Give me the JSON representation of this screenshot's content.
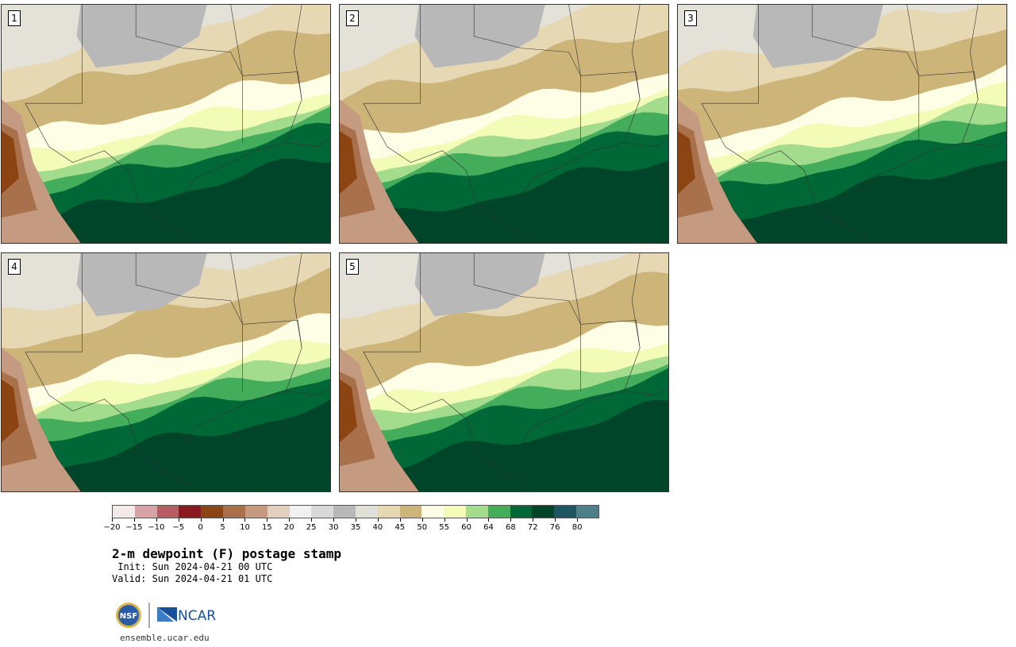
{
  "panels": [
    {
      "label": "1"
    },
    {
      "label": "2"
    },
    {
      "label": "3"
    },
    {
      "label": "4"
    },
    {
      "label": "5"
    }
  ],
  "colorbar": {
    "colors": [
      "#f3ebe9",
      "#d6a3a6",
      "#b85d64",
      "#8b1a20",
      "#8c4512",
      "#a8714b",
      "#c49b80",
      "#e3cfbd",
      "#f1f1f1",
      "#d9d9d9",
      "#b8b8b8",
      "#e0e0d8",
      "#e6d8b3",
      "#cdb57a",
      "#fefee6",
      "#f3fcb6",
      "#a4dc8e",
      "#44ad5b",
      "#006837",
      "#00442a",
      "#1f5561",
      "#4f7f89"
    ],
    "ticks": [
      "−20",
      "−15",
      "−10",
      "−5",
      "0",
      "5",
      "10",
      "15",
      "20",
      "25",
      "30",
      "35",
      "40",
      "45",
      "50",
      "55",
      "60",
      "64",
      "68",
      "72",
      "76",
      "80"
    ]
  },
  "title": "2-m dewpoint (F) postage stamp",
  "init_line": " Init: Sun 2024-04-21 00 UTC",
  "valid_line": "Valid: Sun 2024-04-21 01 UTC",
  "logos": {
    "nsf": "NSF",
    "ncar": "NCAR"
  },
  "website": "ensemble.ucar.edu"
}
